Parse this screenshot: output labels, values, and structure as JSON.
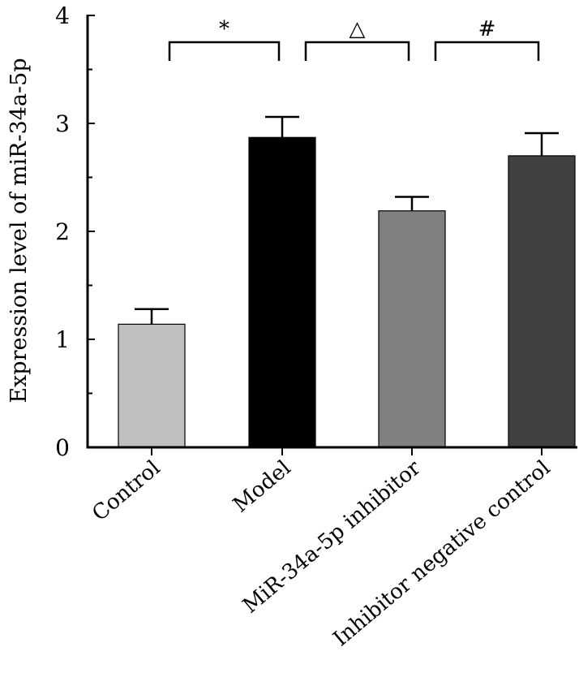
{
  "chart_data": {
    "type": "bar",
    "title": "",
    "xlabel": "",
    "ylabel": "Expression level of miR-34a-5p",
    "ylim": [
      0,
      4
    ],
    "yticks": [
      "0",
      "1",
      "2",
      "3",
      "4"
    ],
    "categories": [
      "Control",
      "Model",
      "MiR-34a-5p inhibitor",
      "Inhibitor negative control"
    ],
    "values": [
      1.14,
      2.87,
      2.19,
      2.7
    ],
    "errors": [
      0.14,
      0.19,
      0.13,
      0.21
    ],
    "colors": [
      "#c0c0c0",
      "#000000",
      "#808080",
      "#404040"
    ],
    "significance": [
      {
        "from": 0,
        "to": 1,
        "label": "*"
      },
      {
        "from": 1,
        "to": 2,
        "label": "△"
      },
      {
        "from": 2,
        "to": 3,
        "label": "#"
      }
    ],
    "grid": false
  }
}
